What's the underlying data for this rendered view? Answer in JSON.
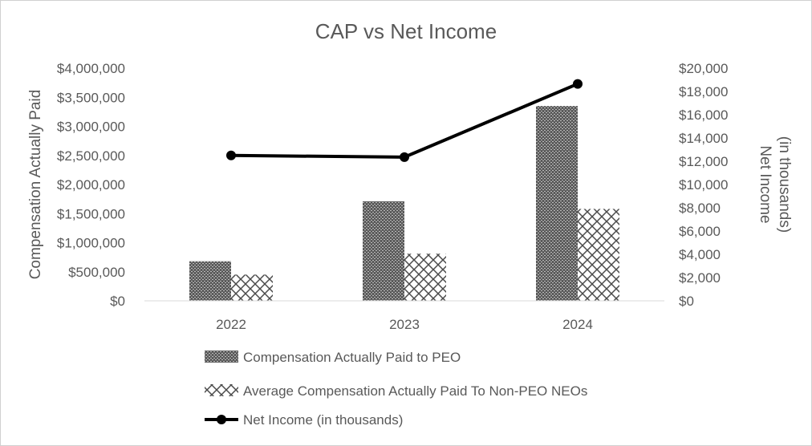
{
  "chart_data": {
    "type": "bar",
    "title": "CAP vs Net Income",
    "categories": [
      "2022",
      "2023",
      "2024"
    ],
    "ylabel_left": "Compensation Actually Paid",
    "ylabel_right_line1": "Net Income",
    "ylabel_right_line2": "(in thousands)",
    "ylim_left": [
      0,
      4000000
    ],
    "ylim_right": [
      0,
      20000
    ],
    "left_ticks": [
      "$0",
      "$500,000",
      "$1,000,000",
      "$1,500,000",
      "$2,000,000",
      "$2,500,000",
      "$3,000,000",
      "$3,500,000",
      "$4,000,000"
    ],
    "right_ticks": [
      "$0",
      "$2,000",
      "$4,000",
      "$6,000",
      "$8,000",
      "$10,000",
      "$12,000",
      "$14,000",
      "$16,000",
      "$18,000",
      "$20,000"
    ],
    "series": [
      {
        "name": "Compensation Actually Paid to PEO",
        "type": "bar",
        "axis": "left",
        "pattern": "dense-weave",
        "values": [
          680000,
          1710000,
          3350000
        ]
      },
      {
        "name": "Average Compensation Actually Paid To Non-PEO NEOs",
        "type": "bar",
        "axis": "left",
        "pattern": "crosshatch",
        "values": [
          450000,
          810000,
          1580000
        ]
      },
      {
        "name": "Net Income (in thousands)",
        "type": "line",
        "axis": "right",
        "color": "#000000",
        "values": [
          12500,
          12350,
          18650
        ]
      }
    ],
    "grid": false,
    "legend_position": "bottom"
  }
}
